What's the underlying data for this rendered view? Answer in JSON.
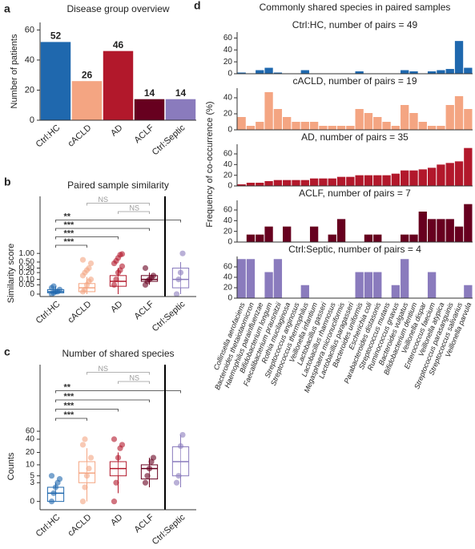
{
  "chart_data": [
    {
      "type": "bar",
      "panel": "a",
      "title": "Disease group overview",
      "ylabel": "Number of patients",
      "categories": [
        "Ctrl:HC",
        "cACLD",
        "AD",
        "ACLF",
        "Ctrl:Septic"
      ],
      "values": [
        52,
        26,
        46,
        14,
        14
      ],
      "colors": [
        "#1f68ae",
        "#f4a582",
        "#b2182b",
        "#67001f",
        "#8a7bbd"
      ],
      "ylim": [
        0,
        65
      ],
      "yticks": [
        0,
        20,
        40,
        60
      ]
    },
    {
      "type": "box",
      "panel": "b",
      "title": "Paired sample similarity",
      "ylabel": "Similarity score",
      "yscale": "symlog",
      "linthresh": 0.05,
      "ylim": [
        -0.01,
        1.3
      ],
      "yticks": [
        0,
        {
          "value": 0.05,
          "label": "0.05"
        },
        {
          "value": 0.1,
          "label": "0.10"
        },
        {
          "value": 0.2,
          "label": "0.20"
        },
        {
          "value": 0.3,
          "label": "0.30"
        },
        {
          "value": 0.5,
          "label": "0.50"
        },
        {
          "value": 1,
          "label": "1.00"
        }
      ],
      "categories": [
        "Ctrl:HC",
        "cACLD",
        "AD",
        "ACLF",
        "Ctrl:Septic"
      ],
      "colors": [
        "#1f68ae",
        "#f4a582",
        "#b2182b",
        "#67001f",
        "#8a7bbd"
      ],
      "groups": [
        {
          "q1": 0.005,
          "median": 0.01,
          "q3": 0.02,
          "whisker_low": 0,
          "whisker_high": 0.04,
          "points": [
            0,
            0.005,
            0.01,
            0.01,
            0.02,
            0.03,
            0.04
          ]
        },
        {
          "q1": 0.01,
          "median": 0.03,
          "q3": 0.06,
          "whisker_low": 0,
          "whisker_high": 0.13,
          "points": [
            0.01,
            0.02,
            0.05,
            0.08,
            0.1,
            0.15,
            0.2,
            0.25,
            0.3,
            0.45,
            0.6
          ]
        },
        {
          "q1": 0.04,
          "median": 0.08,
          "q3": 0.15,
          "whisker_low": 0,
          "whisker_high": 0.3,
          "points": [
            0.05,
            0.1,
            0.2,
            0.25,
            0.35,
            0.45,
            0.55,
            0.7,
            0.9,
            0.95
          ]
        },
        {
          "q1": 0.08,
          "median": 0.1,
          "q3": 0.15,
          "whisker_low": 0.05,
          "whisker_high": 0.2,
          "points": [
            0.05,
            0.08,
            0.1,
            0.12,
            0.15,
            0.3
          ]
        },
        {
          "q1": 0.03,
          "median": 0.1,
          "q3": 0.3,
          "whisker_low": 0,
          "whisker_high": 0.5,
          "points": [
            0,
            0.1,
            0.2,
            1
          ]
        }
      ],
      "significance": [
        "***",
        "***",
        "***",
        "**",
        "NS",
        "NS"
      ]
    },
    {
      "type": "box",
      "panel": "c",
      "title": "Number of shared species",
      "ylabel": "Counts",
      "yscale": "symlog",
      "linthresh": 2,
      "ylim": [
        -1,
        90
      ],
      "yticks": [
        0,
        3,
        5,
        10,
        20,
        40,
        60
      ],
      "categories": [
        "Ctrl:HC",
        "cACLD",
        "AD",
        "ACLF",
        "Ctrl:Septic"
      ],
      "colors": [
        "#1f68ae",
        "#f4a582",
        "#b2182b",
        "#67001f",
        "#8a7bbd"
      ],
      "groups": [
        {
          "q1": 0,
          "median": 1,
          "q3": 2,
          "whisker_low": 0,
          "whisker_high": 3,
          "points": [
            0,
            1,
            2,
            3,
            4,
            5
          ]
        },
        {
          "q1": 3,
          "median": 6,
          "q3": 12,
          "whisker_low": 0,
          "whisker_high": 25,
          "points": [
            0,
            2,
            5,
            8,
            15,
            30,
            40
          ]
        },
        {
          "q1": 5,
          "median": 8,
          "q3": 12,
          "whisker_low": 1,
          "whisker_high": 20,
          "points": [
            0,
            3,
            15,
            25,
            30,
            40
          ]
        },
        {
          "q1": 4,
          "median": 8,
          "q3": 10,
          "whisker_low": 2,
          "whisker_high": 15,
          "points": [
            3,
            5,
            8,
            12,
            15
          ]
        },
        {
          "q1": 5,
          "median": 12,
          "q3": 27,
          "whisker_low": 2,
          "whisker_high": 50,
          "points": [
            3,
            5,
            28,
            50
          ]
        }
      ],
      "significance": [
        "***",
        "***",
        "***",
        "**",
        "NS",
        "NS"
      ]
    },
    {
      "type": "bar",
      "panel": "d",
      "title": "Commonly shared species in paired samples",
      "ylabel": "Frequency of co-occurrence (%)",
      "categories": [
        "Collinsella aerofaciens",
        "Bacteroides thetaiotaomicron",
        "Haemophilus parainfluenzae",
        "Bifidobacterium longum",
        "Faecalibacterium prausnitzii",
        "Rothia mucilaginosa",
        "Streptococcus anginosus",
        "Streptococcus thermophilus",
        "Veillonella infantium",
        "Lactobacillus gasseri",
        "Lactobacillus rhamnosus",
        "Megasphaera micronuciformis",
        "Lactobacillus paragasseri",
        "Bacteroides uniformis",
        "Escherichia coli",
        "Parabacteroides distasonis",
        "Streptococcus mutans",
        "Ruminococcus gnavus",
        "Bacteroides vulgatus",
        "Bifidobacterium dentium",
        "Veillonella dispar",
        "Enterococcus faecium",
        "Veillonella atypica",
        "Streptococcus parasanguinis",
        "Streptococcus salivarius",
        "Veillonella parvula"
      ],
      "series": [
        {
          "name": "Ctrl:HC, number of pairs = 49",
          "color": "#1f68ae",
          "ylim": [
            0,
            70
          ],
          "yticks": [
            0,
            20,
            40,
            60
          ],
          "values": [
            2,
            0,
            6,
            10,
            2,
            0,
            0,
            6,
            0,
            0,
            0,
            0,
            0,
            4,
            0,
            0,
            0,
            0,
            6,
            4,
            0,
            4,
            6,
            8,
            55,
            10
          ]
        },
        {
          "name": "cACLD, number of pairs = 19",
          "color": "#f4a582",
          "ylim": [
            0,
            52
          ],
          "yticks": [
            0,
            20,
            40
          ],
          "values": [
            16,
            5,
            10,
            47,
            26,
            16,
            10,
            10,
            10,
            5,
            5,
            5,
            5,
            26,
            21,
            16,
            10,
            5,
            31,
            21,
            10,
            5,
            5,
            31,
            42,
            26
          ]
        },
        {
          "name": "AD, number of pairs = 35",
          "color": "#b2182b",
          "ylim": [
            0,
            78
          ],
          "yticks": [
            0,
            20,
            40,
            60
          ],
          "values": [
            3,
            6,
            6,
            9,
            11,
            11,
            11,
            11,
            14,
            14,
            14,
            17,
            17,
            20,
            20,
            20,
            20,
            23,
            29,
            29,
            31,
            34,
            40,
            43,
            46,
            71
          ]
        },
        {
          "name": "ACLF, number of pairs = 7",
          "color": "#67001f",
          "ylim": [
            0,
            78
          ],
          "yticks": [
            0,
            20,
            40,
            60
          ],
          "values": [
            0,
            14,
            14,
            29,
            0,
            29,
            0,
            0,
            29,
            0,
            14,
            43,
            0,
            0,
            14,
            14,
            0,
            0,
            14,
            14,
            57,
            43,
            43,
            43,
            29,
            71
          ]
        },
        {
          "name": "Ctrl:Septic, number of pairs = 4",
          "color": "#8a7bbd",
          "ylim": [
            0,
            80
          ],
          "yticks": [
            0,
            20,
            40,
            60
          ],
          "values": [
            75,
            75,
            0,
            50,
            75,
            0,
            0,
            25,
            0,
            0,
            0,
            0,
            0,
            50,
            50,
            50,
            0,
            25,
            75,
            0,
            0,
            50,
            0,
            0,
            0,
            25
          ]
        }
      ]
    }
  ]
}
